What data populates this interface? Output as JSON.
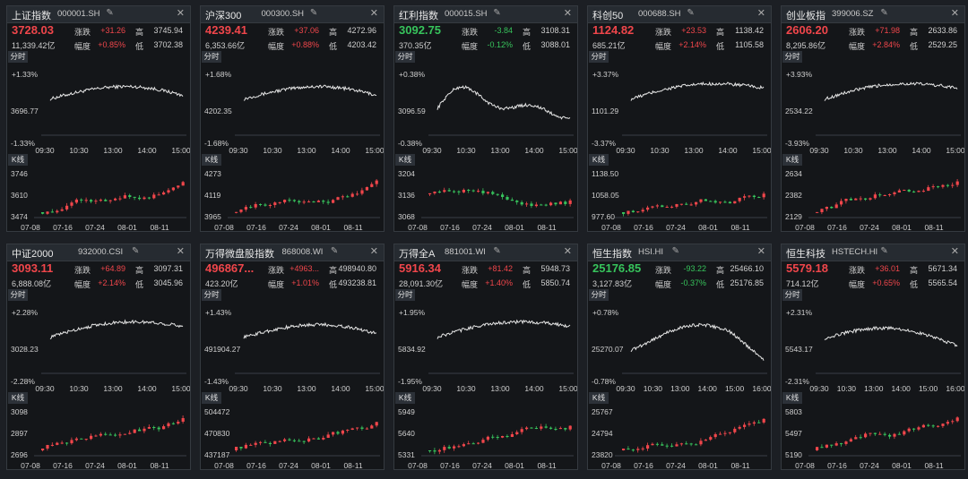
{
  "labels": {
    "change": "涨跌",
    "ratio": "幅度",
    "high": "高",
    "low": "低",
    "intraday_tab": "分时",
    "kline_tab": "K线"
  },
  "colors": {
    "up": "#f0464b",
    "down": "#37c45c",
    "line": "#e6e6e6",
    "background": "#141619"
  },
  "icons": {
    "edit": "pencil-icon",
    "close": "close-icon"
  },
  "cards": [
    {
      "id": "sse",
      "name": "上证指数",
      "code": "000001.SH",
      "price": "3728.03",
      "dir": "up",
      "change": "+31.26",
      "high": "3745.94",
      "amount": "11,339.42亿",
      "pct": "+0.85%",
      "low": "3702.38",
      "intraday": {
        "top": "+1.33%",
        "mid": "3696.77",
        "bottom": "-1.33%",
        "times": [
          "09:30",
          "10:30",
          "13:00",
          "14:00",
          "15:00"
        ],
        "shape": "a"
      },
      "kline": {
        "top": "3746",
        "mid": "3610",
        "bottom": "3474",
        "dates": [
          "07-08",
          "07-16",
          "07-24",
          "08-01",
          "08-11"
        ]
      }
    },
    {
      "id": "csi300",
      "name": "沪深300",
      "code": "000300.SH",
      "price": "4239.41",
      "dir": "up",
      "change": "+37.06",
      "high": "4272.96",
      "amount": "6,353.66亿",
      "pct": "+0.88%",
      "low": "4203.42",
      "intraday": {
        "top": "+1.68%",
        "mid": "4202.35",
        "bottom": "-1.68%",
        "times": [
          "09:30",
          "10:30",
          "13:00",
          "14:00",
          "15:00"
        ],
        "shape": "a"
      },
      "kline": {
        "top": "4273",
        "mid": "4119",
        "bottom": "3965",
        "dates": [
          "07-08",
          "07-16",
          "07-24",
          "08-01",
          "08-11"
        ]
      }
    },
    {
      "id": "dividend",
      "name": "红利指数",
      "code": "000015.SH",
      "price": "3092.75",
      "dir": "down",
      "change": "-3.84",
      "high": "3108.31",
      "amount": "370.35亿",
      "pct": "-0.12%",
      "low": "3088.01",
      "intraday": {
        "top": "+0.38%",
        "mid": "3096.59",
        "bottom": "-0.38%",
        "times": [
          "09:30",
          "10:30",
          "13:00",
          "14:00",
          "15:00"
        ],
        "shape": "b"
      },
      "kline": {
        "top": "3204",
        "mid": "3136",
        "bottom": "3068",
        "dates": [
          "07-08",
          "07-16",
          "07-24",
          "08-01",
          "08-11"
        ]
      }
    },
    {
      "id": "star50",
      "name": "科创50",
      "code": "000688.SH",
      "price": "1124.82",
      "dir": "up",
      "change": "+23.53",
      "high": "1138.42",
      "amount": "685.21亿",
      "pct": "+2.14%",
      "low": "1105.58",
      "intraday": {
        "top": "+3.37%",
        "mid": "1101.29",
        "bottom": "-3.37%",
        "times": [
          "09:30",
          "10:30",
          "13:00",
          "14:00",
          "15:00"
        ],
        "shape": "c"
      },
      "kline": {
        "top": "1138.50",
        "mid": "1058.05",
        "bottom": "977.60",
        "dates": [
          "07-08",
          "07-16",
          "07-24",
          "08-01",
          "08-11"
        ]
      }
    },
    {
      "id": "chinext",
      "name": "创业板指",
      "code": "399006.SZ",
      "price": "2606.20",
      "dir": "up",
      "change": "+71.98",
      "high": "2633.86",
      "amount": "8,295.86亿",
      "pct": "+2.84%",
      "low": "2529.25",
      "intraday": {
        "top": "+3.93%",
        "mid": "2534.22",
        "bottom": "-3.93%",
        "times": [
          "09:30",
          "10:30",
          "13:00",
          "14:00",
          "15:00"
        ],
        "shape": "c"
      },
      "kline": {
        "top": "2634",
        "mid": "2382",
        "bottom": "2129",
        "dates": [
          "07-08",
          "07-16",
          "07-24",
          "08-01",
          "08-11"
        ]
      }
    },
    {
      "id": "csi2000",
      "name": "中证2000",
      "code": "932000.CSI",
      "price": "3093.11",
      "dir": "up",
      "change": "+64.89",
      "high": "3097.31",
      "amount": "6,888.08亿",
      "pct": "+2.14%",
      "low": "3045.96",
      "intraday": {
        "top": "+2.28%",
        "mid": "3028.23",
        "bottom": "-2.28%",
        "times": [
          "09:30",
          "10:30",
          "13:00",
          "14:00",
          "15:00"
        ],
        "shape": "c"
      },
      "kline": {
        "top": "3098",
        "mid": "2897",
        "bottom": "2696",
        "dates": [
          "07-08",
          "07-16",
          "07-24",
          "08-01",
          "08-11"
        ]
      }
    },
    {
      "id": "wind-micro",
      "name": "万得微盘股指数",
      "code": "868008.WI",
      "price": "496867...",
      "dir": "up",
      "change": "+4963...",
      "high": "498940.80",
      "amount": "423.20亿",
      "pct": "+1.01%",
      "low": "493238.81",
      "intraday": {
        "top": "+1.43%",
        "mid": "491904.27",
        "bottom": "-1.43%",
        "times": [
          "09:30",
          "10:30",
          "13:00",
          "14:00",
          "15:00"
        ],
        "shape": "a"
      },
      "kline": {
        "top": "504472",
        "mid": "470830",
        "bottom": "437187",
        "dates": [
          "07-08",
          "07-16",
          "07-24",
          "08-01",
          "08-11"
        ]
      }
    },
    {
      "id": "wind-all-a",
      "name": "万得全A",
      "code": "881001.WI",
      "price": "5916.34",
      "dir": "up",
      "change": "+81.42",
      "high": "5948.73",
      "amount": "28,091.30亿",
      "pct": "+1.40%",
      "low": "5850.74",
      "intraday": {
        "top": "+1.95%",
        "mid": "5834.92",
        "bottom": "-1.95%",
        "times": [
          "09:30",
          "10:30",
          "13:00",
          "14:00",
          "15:00"
        ],
        "shape": "c"
      },
      "kline": {
        "top": "5949",
        "mid": "5640",
        "bottom": "5331",
        "dates": [
          "07-08",
          "07-16",
          "07-24",
          "08-01",
          "08-11"
        ]
      }
    },
    {
      "id": "hsi",
      "name": "恒生指数",
      "code": "HSI.HI",
      "price": "25176.85",
      "dir": "down",
      "change": "-93.22",
      "high": "25466.10",
      "amount": "3,127.83亿",
      "pct": "-0.37%",
      "low": "25176.85",
      "intraday": {
        "top": "+0.78%",
        "mid": "25270.07",
        "bottom": "-0.78%",
        "times": [
          "09:30",
          "10:30",
          "13:00",
          "14:00",
          "15:00",
          "16:00"
        ],
        "shape": "d"
      },
      "kline": {
        "top": "25767",
        "mid": "24794",
        "bottom": "23820",
        "dates": [
          "07-08",
          "07-16",
          "07-24",
          "08-01",
          "08-11"
        ]
      }
    },
    {
      "id": "hstech",
      "name": "恒生科技",
      "code": "HSTECH.HI",
      "price": "5579.18",
      "dir": "up",
      "change": "+36.01",
      "high": "5671.34",
      "amount": "714.12亿",
      "pct": "+0.65%",
      "low": "5565.54",
      "intraday": {
        "top": "+2.31%",
        "mid": "5543.17",
        "bottom": "-2.31%",
        "times": [
          "09:30",
          "10:30",
          "13:00",
          "14:00",
          "15:00",
          "16:00"
        ],
        "shape": "e"
      },
      "kline": {
        "top": "5803",
        "mid": "5497",
        "bottom": "5190",
        "dates": [
          "07-08",
          "07-16",
          "07-24",
          "08-01",
          "08-11"
        ]
      }
    }
  ]
}
